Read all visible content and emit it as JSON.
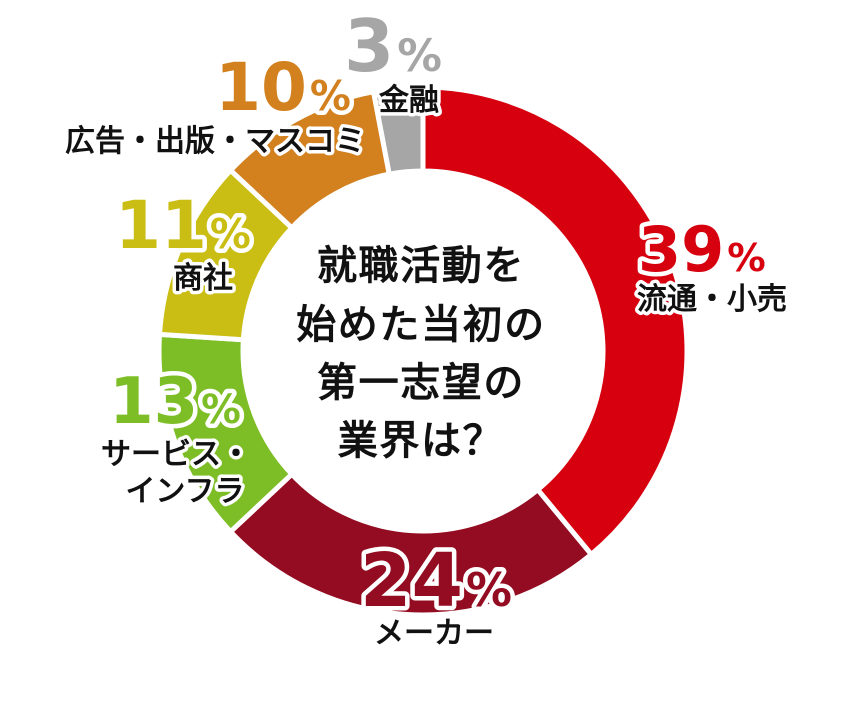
{
  "chart_data": {
    "type": "donut",
    "title": "就職活動を始めた当初の第一志望の業界は？",
    "title_lines": [
      "就職活動を",
      "始めた当初の",
      "第一志望の",
      "業界は？"
    ],
    "percent_sign": "%",
    "start_angle_deg": 0,
    "direction": "clockwise",
    "background": "#ffffff",
    "text_color": "#111111",
    "separator_color": "#ffffff",
    "segments": [
      {
        "label": "流通・小売",
        "label_lines": [
          "流通・小売"
        ],
        "value": 39,
        "color": "#d7000f"
      },
      {
        "label": "メーカー",
        "label_lines": [
          "メーカー"
        ],
        "value": 24,
        "color": "#940c21"
      },
      {
        "label": "サービス・インフラ",
        "label_lines": [
          "サービス・",
          "インフラ"
        ],
        "value": 13,
        "color": "#7dbe26"
      },
      {
        "label": "商社",
        "label_lines": [
          "商社"
        ],
        "value": 11,
        "color": "#cabd14"
      },
      {
        "label": "広告・出版・マスコミ",
        "label_lines": [
          "広告・出版・マスコミ"
        ],
        "value": 10,
        "color": "#d2811e"
      },
      {
        "label": "金融",
        "label_lines": [
          "金融"
        ],
        "value": 3,
        "color": "#a6a6a6"
      }
    ]
  }
}
